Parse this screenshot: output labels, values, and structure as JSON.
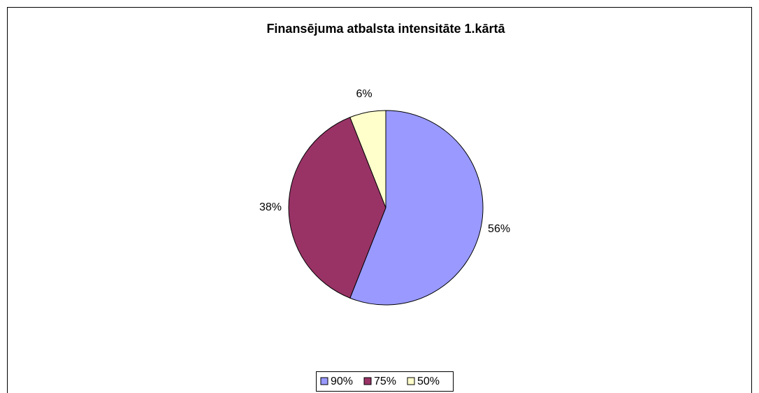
{
  "chart_data": {
    "type": "pie",
    "title": "Finansējuma atbalsta intensitāte 1.kārtā",
    "categories": [
      "90%",
      "75%",
      "50%"
    ],
    "values": [
      56,
      38,
      6
    ],
    "value_labels": [
      "56%",
      "38%",
      "6%"
    ],
    "colors": [
      "#9999ff",
      "#993366",
      "#ffffcc"
    ],
    "legend": "bottom"
  }
}
